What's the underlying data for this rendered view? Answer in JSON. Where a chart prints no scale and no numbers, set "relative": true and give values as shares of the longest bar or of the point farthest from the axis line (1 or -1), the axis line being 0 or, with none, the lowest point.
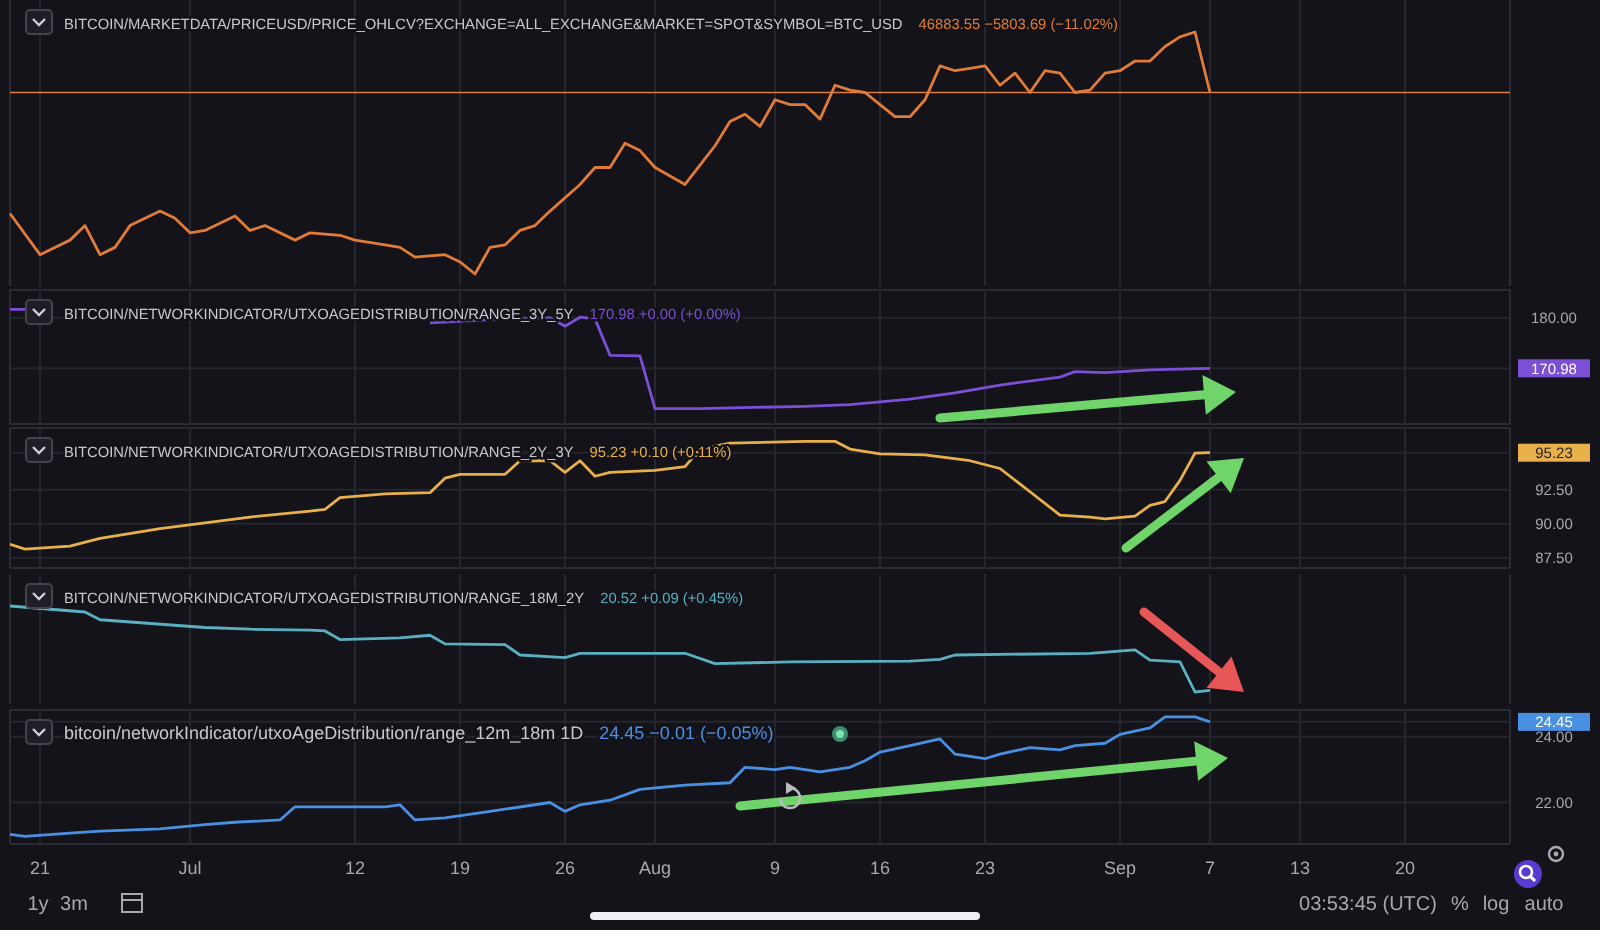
{
  "chart_data": [
    {
      "type": "line",
      "title": "BITCOIN/MARKETDATA/PRICEUSD/PRICE_OHLCV?EXCHANGE=ALL_EXCHANGE&MARKET=SPOT&SYMBOL=BTC_USD",
      "subtitle": "46883.55 −5803.69 (−11.02%)",
      "relative": true,
      "grid": true,
      "tick_labels": false,
      "xlim": [
        "--06-19",
        "--09-27"
      ],
      "ref_lines": [
        {
          "axis": "y",
          "value": 0.75,
          "color": "#e07b39"
        }
      ],
      "series": [
        {
          "color": "#e07b39",
          "x": [
            "--06-19",
            "--06-21",
            "--06-23",
            "--06-24",
            "--06-25",
            "--06-26",
            "--06-27",
            "--06-29",
            "--06-30",
            "--07-01",
            "--07-02",
            "--07-04",
            "--07-05",
            "--07-06",
            "--07-08",
            "--07-09",
            "--07-11",
            "--07-12",
            "--07-14",
            "--07-15",
            "--07-16",
            "--07-18",
            "--07-19",
            "--07-20",
            "--07-21",
            "--07-22",
            "--07-23",
            "--07-24",
            "--07-25",
            "--07-27",
            "--07-28",
            "--07-29",
            "--07-30",
            "--07-31",
            "--08-01",
            "--08-03",
            "--08-04",
            "--08-05",
            "--08-06",
            "--08-07",
            "--08-08",
            "--08-09",
            "--08-10",
            "--08-11",
            "--08-12",
            "--08-13",
            "--08-14",
            "--08-15",
            "--08-16",
            "--08-17",
            "--08-18",
            "--08-19",
            "--08-20",
            "--08-21",
            "--08-22",
            "--08-23",
            "--08-24",
            "--08-25",
            "--08-26",
            "--08-27",
            "--08-28",
            "--08-29",
            "--08-30",
            "--08-31",
            "--09-01",
            "--09-02",
            "--09-03",
            "--09-04",
            "--09-05",
            "--09-06",
            "--09-07"
          ],
          "values": [
            0.25,
            0.08,
            0.14,
            0.2,
            0.08,
            0.11,
            0.2,
            0.26,
            0.23,
            0.17,
            0.18,
            0.24,
            0.18,
            0.2,
            0.14,
            0.17,
            0.16,
            0.14,
            0.12,
            0.11,
            0.07,
            0.08,
            0.05,
            0,
            0.11,
            0.12,
            0.18,
            0.2,
            0.26,
            0.37,
            0.44,
            0.44,
            0.54,
            0.51,
            0.44,
            0.37,
            0.45,
            0.53,
            0.63,
            0.66,
            0.61,
            0.72,
            0.7,
            0.7,
            0.64,
            0.78,
            0.76,
            0.75,
            0.7,
            0.65,
            0.65,
            0.72,
            0.86,
            0.84,
            0.85,
            0.86,
            0.78,
            0.83,
            0.75,
            0.84,
            0.83,
            0.75,
            0.76,
            0.83,
            0.84,
            0.88,
            0.88,
            0.94,
            0.98,
            1,
            0.75
          ]
        }
      ]
    },
    {
      "type": "line",
      "title": "BITCOIN/NETWORKINDICATOR/UTXOAGEDISTRIBUTION/RANGE_3Y_5Y",
      "subtitle": "170.98 +0.00 (+0.00%)",
      "grid": true,
      "tick_labels": "y",
      "xlim": [
        "--06-19",
        "--09-27"
      ],
      "ylim": [
        161.4,
        184.6
      ],
      "yticks": [
        {
          "value": 180,
          "label": "180.00"
        },
        {
          "value": 170.98,
          "label": "170.98"
        }
      ],
      "series": [
        {
          "color": "#7b4fd6",
          "x": [
            "--06-19",
            "--06-20",
            "--06-21",
            "--07-16",
            "--07-17",
            "--07-22",
            "--07-25",
            "--07-26",
            "--07-27",
            "--07-28",
            "--07-29",
            "--07-31",
            "--08-01",
            "--08-04",
            "--08-11",
            "--08-14",
            "--08-18",
            "--08-21",
            "--08-24",
            "--08-28",
            "--08-29",
            "--08-31",
            "--09-03",
            "--09-07"
          ],
          "values": [
            181.5,
            181.5,
            null,
            null,
            179.1,
            179.8,
            180,
            178.5,
            180.1,
            179.8,
            173.3,
            173.2,
            163.8,
            163.8,
            164.2,
            164.5,
            165.5,
            166.6,
            168,
            169.4,
            170.4,
            170.2,
            170.7,
            170.98
          ]
        }
      ]
    },
    {
      "type": "line",
      "title": "BITCOIN/NETWORKINDICATOR/UTXOAGEDISTRIBUTION/RANGE_2Y_3Y",
      "subtitle": "95.23 +0.10 (+0.11%)",
      "grid": true,
      "tick_labels": "y",
      "xlim": [
        "--06-19",
        "--09-27"
      ],
      "ylim": [
        86.9,
        96.9
      ],
      "yticks": [
        {
          "value": 87.5,
          "label": "87.50"
        },
        {
          "value": 90,
          "label": "90.00"
        },
        {
          "value": 92.5,
          "label": "92.50"
        },
        {
          "value": 95.23,
          "label": "95.23"
        }
      ],
      "series": [
        {
          "color": "#e8b04a",
          "x": [
            "--06-19",
            "--06-20",
            "--06-23",
            "--06-25",
            "--06-29",
            "--07-02",
            "--07-05",
            "--07-09",
            "--07-10",
            "--07-11",
            "--07-14",
            "--07-17",
            "--07-18",
            "--07-19",
            "--07-22",
            "--07-23",
            "--07-25",
            "--07-26",
            "--07-27",
            "--07-28",
            "--07-29",
            "--08-01",
            "--08-03",
            "--08-04",
            "--08-06",
            "--08-11",
            "--08-13",
            "--08-14",
            "--08-16",
            "--08-19",
            "--08-22",
            "--08-24",
            "--08-26",
            "--08-28",
            "--08-30",
            "--08-31",
            "--09-02",
            "--09-03",
            "--09-04",
            "--09-05",
            "--09-06",
            "--09-07"
          ],
          "values": [
            88.5,
            88.14,
            88.36,
            88.93,
            89.64,
            90.07,
            90.5,
            90.93,
            91.07,
            91.93,
            92.21,
            92.29,
            93.36,
            93.64,
            93.64,
            94.64,
            94.64,
            93.79,
            94.64,
            93.5,
            93.79,
            93.93,
            94.21,
            95.5,
            95.93,
            96.07,
            96.07,
            95.5,
            95.14,
            95.07,
            94.64,
            94.07,
            92.36,
            90.64,
            90.5,
            90.36,
            90.57,
            91.36,
            91.64,
            93.2,
            95.2,
            95.23
          ]
        }
      ]
    },
    {
      "type": "line",
      "title": "BITCOIN/NETWORKINDICATOR/UTXOAGEDISTRIBUTION/RANGE_18M_2Y",
      "subtitle": "20.52 +0.09 (+0.45%)",
      "relative": true,
      "grid": true,
      "tick_labels": false,
      "xlim": [
        "--06-19",
        "--09-27"
      ],
      "series": [
        {
          "color": "#5ab0c0",
          "x": [
            "--06-19",
            "--06-24",
            "--06-25",
            "--07-02",
            "--07-05",
            "--07-09",
            "--07-10",
            "--07-11",
            "--07-15",
            "--07-17",
            "--07-18",
            "--07-22",
            "--07-23",
            "--07-26",
            "--07-27",
            "--08-03",
            "--08-05",
            "--08-10",
            "--08-18",
            "--08-20",
            "--08-21",
            "--08-30",
            "--09-02",
            "--09-03",
            "--09-05",
            "--09-06",
            "--09-07"
          ],
          "values": [
            1,
            0.93,
            0.84,
            0.75,
            0.73,
            0.72,
            0.71,
            0.61,
            0.63,
            0.66,
            0.56,
            0.55,
            0.43,
            0.4,
            0.45,
            0.45,
            0.33,
            0.35,
            0.36,
            0.38,
            0.43,
            0.45,
            0.49,
            0.37,
            0.35,
            0,
            0.02
          ]
        }
      ]
    },
    {
      "type": "line",
      "title": "bitcoin/networkIndicator/utxoAgeDistribution/range_12m_18m 1D",
      "subtitle": "24.45 −0.01 (−0.05%)",
      "grid": true,
      "xlim": [
        "--06-19",
        "--09-27"
      ],
      "ylim": [
        20.8,
        24.75
      ],
      "yticks": [
        {
          "value": 22,
          "label": "22.00"
        },
        {
          "value": 24,
          "label": "24.00"
        },
        {
          "value": 24.45,
          "label": "24.45"
        }
      ],
      "xticks": [
        {
          "value": "--06-21",
          "label": "21"
        },
        {
          "value": "--07-01",
          "label": "Jul"
        },
        {
          "value": "--07-12",
          "label": "12"
        },
        {
          "value": "--07-19",
          "label": "19"
        },
        {
          "value": "--07-26",
          "label": "26"
        },
        {
          "value": "--08-01",
          "label": "Aug"
        },
        {
          "value": "--08-09",
          "label": "9"
        },
        {
          "value": "--08-16",
          "label": "16"
        },
        {
          "value": "--08-23",
          "label": "23"
        },
        {
          "value": "--09-01",
          "label": "Sep"
        },
        {
          "value": "--09-07",
          "label": "7"
        },
        {
          "value": "--09-13",
          "label": "13"
        },
        {
          "value": "--09-20",
          "label": "20"
        }
      ],
      "annotations": [
        "1y",
        "3m",
        "03:53:45 (UTC)",
        "%",
        "log",
        "auto"
      ],
      "series": [
        {
          "color": "#4a90e2",
          "x": [
            "--06-19",
            "--06-20",
            "--06-23",
            "--06-25",
            "--06-29",
            "--07-02",
            "--07-04",
            "--07-07",
            "--07-08",
            "--07-11",
            "--07-14",
            "--07-15",
            "--07-16",
            "--07-18",
            "--07-21",
            "--07-25",
            "--07-26",
            "--07-27",
            "--07-29",
            "--07-31",
            "--08-03",
            "--08-06",
            "--08-07",
            "--08-09",
            "--08-10",
            "--08-12",
            "--08-14",
            "--08-15",
            "--08-16",
            "--08-18",
            "--08-20",
            "--08-21",
            "--08-23",
            "--08-24",
            "--08-26",
            "--08-28",
            "--08-29",
            "--08-31",
            "--09-01",
            "--09-03",
            "--09-04",
            "--09-06",
            "--09-07"
          ],
          "values": [
            21.03,
            20.97,
            21.07,
            21.13,
            21.2,
            21.33,
            21.4,
            21.47,
            21.87,
            21.87,
            21.87,
            21.93,
            21.47,
            21.53,
            21.73,
            22,
            21.73,
            21.93,
            22.07,
            22.4,
            22.53,
            22.6,
            23.07,
            23,
            23.07,
            22.93,
            23.07,
            23.27,
            23.53,
            23.73,
            23.93,
            23.47,
            23.33,
            23.47,
            23.67,
            23.6,
            23.73,
            23.8,
            24.07,
            24.27,
            24.6,
            24.6,
            24.45
          ]
        }
      ]
    }
  ]
}
